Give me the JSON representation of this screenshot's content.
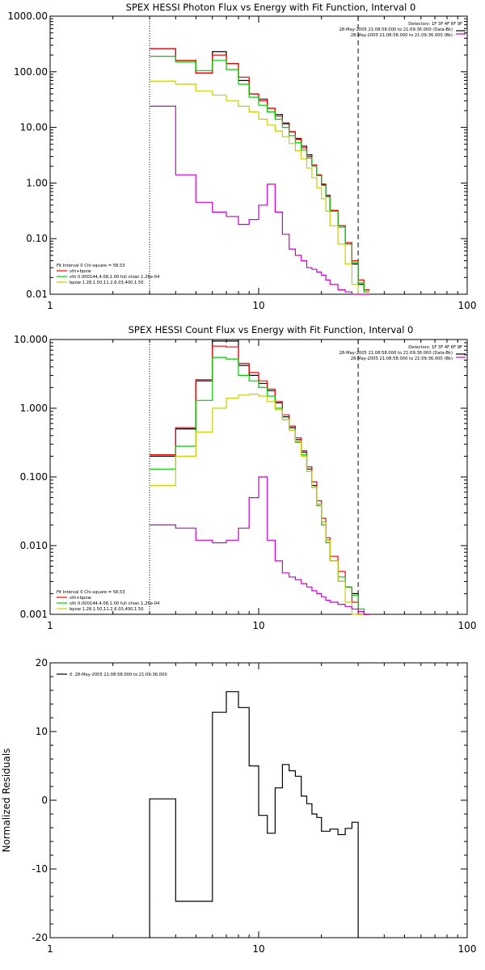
{
  "colors": {
    "axis": "#000000",
    "vth": "#ff0000",
    "vth_fit": "#00cc00",
    "bpow": "#cccc00",
    "background": "#cc00cc",
    "data": "#000000"
  },
  "chart_data": [
    {
      "type": "line",
      "step": true,
      "title": "SPEX HESSI Photon Flux vs Energy with Fit Function, Interval 0",
      "xscale": "log",
      "yscale": "log",
      "xlim": [
        1,
        100
      ],
      "ylim": [
        0.01,
        1000
      ],
      "x_ticks": [
        "1",
        "10",
        "100"
      ],
      "x_tick_values": [
        1,
        10,
        100
      ],
      "y_ticks": [
        "0.01",
        "0.10",
        "1.00",
        "10.00",
        "100.00",
        "1000.00"
      ],
      "y_tick_values": [
        0.01,
        0.1,
        1,
        10,
        100,
        1000
      ],
      "vlines": [
        {
          "x": 3,
          "style": "dotted"
        },
        {
          "x": 30,
          "style": "dashed"
        }
      ],
      "header_lines": [
        "Detectors: 1F 3F 4F 6F 9F",
        "28-May-2005 21:08:58.000 to 21:09:36.000 (Data-Bk)",
        "28-May-2005 21:08:58.000 to 21:09:36.000 (Bk)"
      ],
      "legend_lines": [
        "Fit Interval  0    Chi-square = 58.53",
        "vth+bpow",
        "vth  0.000144,4.08,1.00   full chian 1.26e-04",
        "bpow  1.28,1.50,11.2,6.03,400,1.50"
      ],
      "bin_edges": [
        3,
        4,
        5,
        6,
        7,
        8,
        9,
        10,
        11,
        12,
        13,
        14,
        15,
        16,
        17,
        18,
        19,
        20,
        21,
        22,
        24,
        26,
        28,
        30,
        32,
        34
      ],
      "series": [
        {
          "role": "data",
          "values": [
            260,
            160,
            95,
            230,
            140,
            70,
            40,
            32,
            22,
            17,
            12,
            8.3,
            6.3,
            4.6,
            3.2,
            2.1,
            1.4,
            0.95,
            0.6,
            0.32,
            0.17,
            0.08,
            0.035,
            0.015,
            0.012
          ]
        },
        {
          "role": "vth",
          "values": [
            260,
            160,
            95,
            200,
            140,
            80,
            40,
            30,
            22,
            16,
            11.5,
            8.4,
            6.1,
            4.3,
            3.0,
            2.1,
            1.4,
            0.92,
            0.57,
            0.32,
            0.17,
            0.085,
            0.04,
            0.018,
            0.012
          ]
        },
        {
          "role": "vth_fit",
          "values": [
            190,
            150,
            105,
            160,
            110,
            60,
            35,
            25,
            19,
            14,
            10,
            7.1,
            5.3,
            3.9,
            2.8,
            2.0,
            1.35,
            0.9,
            0.56,
            0.31,
            0.16,
            0.08,
            0.037,
            0.016,
            0.011
          ]
        },
        {
          "role": "bpow",
          "values": [
            68,
            60,
            45,
            38,
            30,
            24,
            19,
            14,
            11,
            8.6,
            6.8,
            5.1,
            3.8,
            2.7,
            1.85,
            1.25,
            0.82,
            0.52,
            0.31,
            0.17,
            0.08,
            0.035,
            0.015,
            0.01,
            0.01
          ]
        },
        {
          "role": "background",
          "values": [
            24,
            1.4,
            0.45,
            0.3,
            0.25,
            0.18,
            0.22,
            0.4,
            0.95,
            0.3,
            0.12,
            0.065,
            0.05,
            0.04,
            0.03,
            0.028,
            0.025,
            0.022,
            0.018,
            0.015,
            0.012,
            0.011,
            0.01,
            0.01,
            0.01
          ]
        }
      ]
    },
    {
      "type": "line",
      "step": true,
      "title": "SPEX HESSI Count Flux vs Energy with Fit Function, Interval 0",
      "xscale": "log",
      "yscale": "log",
      "xlim": [
        1,
        100
      ],
      "ylim": [
        0.001,
        10
      ],
      "x_ticks": [
        "1",
        "10",
        "100"
      ],
      "x_tick_values": [
        1,
        10,
        100
      ],
      "y_ticks": [
        "0.001",
        "0.010",
        "0.100",
        "1.000",
        "10.000"
      ],
      "y_tick_values": [
        0.001,
        0.01,
        0.1,
        1,
        10
      ],
      "vlines": [
        {
          "x": 3,
          "style": "dotted"
        },
        {
          "x": 30,
          "style": "dashed"
        }
      ],
      "header_lines": [
        "Detectors: 1F 3F 4F 6F 9F",
        "28-May-2005 21:08:58.000 to 21:09:36.000 (Data-Bk)",
        "28-May-2005 21:08:58.000 to 21:09:36.000 (Bk)"
      ],
      "legend_lines": [
        "Fit Interval  0    Chi-square = 58.53",
        "vth+bpow",
        "vth  0.000144,4.08,1.00   full chian 1.26e-04",
        "bpow  1.28,1.50,11.2,6.03,400,1.50"
      ],
      "bin_edges": [
        3,
        4,
        5,
        6,
        7,
        8,
        9,
        10,
        11,
        12,
        13,
        14,
        15,
        16,
        17,
        18,
        19,
        20,
        21,
        22,
        24,
        26,
        28,
        30,
        32,
        34
      ],
      "series": [
        {
          "role": "data",
          "values": [
            0.2,
            0.5,
            2.5,
            9.5,
            9.5,
            4.2,
            3.0,
            2.3,
            1.8,
            1.2,
            0.75,
            0.52,
            0.35,
            0.23,
            0.13,
            0.075,
            0.04,
            0.022,
            0.012,
            0.006,
            0.003,
            0.0025,
            0.002,
            0.001,
            0.001
          ]
        },
        {
          "role": "vth",
          "values": [
            0.21,
            0.52,
            2.6,
            8.0,
            7.8,
            4.5,
            3.3,
            2.5,
            1.9,
            1.25,
            0.8,
            0.55,
            0.37,
            0.24,
            0.14,
            0.085,
            0.045,
            0.025,
            0.013,
            0.007,
            0.0042,
            0.0025,
            0.0015,
            0.001,
            0.001
          ]
        },
        {
          "role": "vth_fit",
          "values": [
            0.13,
            0.28,
            1.3,
            5.5,
            5.2,
            3.0,
            2.5,
            2.0,
            1.5,
            1.0,
            0.68,
            0.48,
            0.32,
            0.21,
            0.12,
            0.07,
            0.038,
            0.02,
            0.011,
            0.006,
            0.0035,
            0.0025,
            0.0019,
            0.0012,
            0.001
          ]
        },
        {
          "role": "bpow",
          "values": [
            0.075,
            0.2,
            0.45,
            1.0,
            1.4,
            1.55,
            1.6,
            1.5,
            1.25,
            0.95,
            0.68,
            0.48,
            0.33,
            0.2,
            0.12,
            0.07,
            0.04,
            0.022,
            0.012,
            0.006,
            0.003,
            0.0015,
            0.001,
            0.001,
            0.001
          ]
        },
        {
          "role": "background",
          "values": [
            0.02,
            0.018,
            0.012,
            0.011,
            0.012,
            0.018,
            0.05,
            0.1,
            0.012,
            0.006,
            0.004,
            0.0035,
            0.0032,
            0.0028,
            0.0025,
            0.0022,
            0.002,
            0.0018,
            0.0016,
            0.0015,
            0.0014,
            0.0013,
            0.0012,
            0.0011,
            0.001
          ]
        }
      ]
    },
    {
      "type": "line",
      "step": true,
      "title": "",
      "ylabel": "Normalized Residuals",
      "xscale": "log",
      "yscale": "linear",
      "xlim": [
        1,
        100
      ],
      "ylim": [
        -20,
        20
      ],
      "x_ticks": [
        "1",
        "10",
        "100"
      ],
      "x_tick_values": [
        1,
        10,
        100
      ],
      "y_ticks": [
        "-20",
        "-10",
        "0",
        "10",
        "20"
      ],
      "y_tick_values": [
        -20,
        -10,
        0,
        10,
        20
      ],
      "legend_lines": [
        "0. 28-May-2005 21:08:58.000 to 21:09:36.000"
      ],
      "bin_edges": [
        3,
        4,
        6,
        7,
        8,
        9,
        10,
        11,
        12,
        13,
        14,
        15,
        16,
        17,
        18,
        19,
        20,
        22,
        24,
        26,
        28,
        30
      ],
      "series": [
        {
          "role": "data",
          "values": [
            0.2,
            -14.7,
            12.8,
            15.8,
            13.5,
            5.0,
            -2.2,
            -4.8,
            1.8,
            5.2,
            4.3,
            3.5,
            0.6,
            -0.5,
            -2.0,
            -2.5,
            -4.5,
            -4.2,
            -5.0,
            -4.1,
            -3.2
          ]
        }
      ]
    }
  ]
}
